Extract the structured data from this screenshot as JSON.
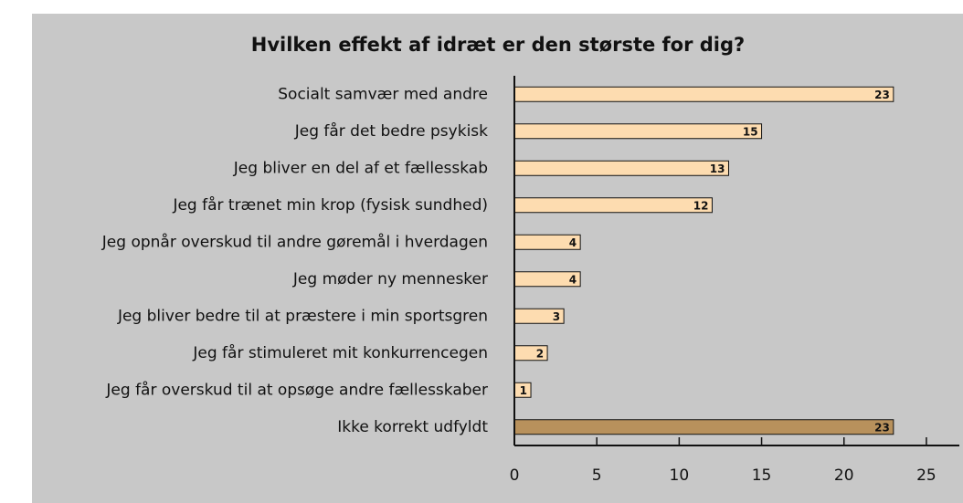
{
  "chart_data": {
    "type": "bar",
    "orientation": "horizontal",
    "title": "Hvilken effekt af idræt er den største for dig?",
    "categories": [
      "Socialt samvær med andre",
      "Jeg får det bedre psykisk",
      "Jeg bliver en del af et fællesskab",
      "Jeg får trænet min krop (fysisk sundhed)",
      "Jeg opnår overskud til andre gøremål i hverdagen",
      "Jeg møder ny mennesker",
      "Jeg bliver bedre til at præstere i min sportsgren",
      "Jeg får stimuleret mit konkurrencegen",
      "Jeg får overskud til at opsøge andre fællesskaber",
      "Ikke korrekt udfyldt"
    ],
    "values": [
      23,
      15,
      13,
      12,
      4,
      4,
      3,
      2,
      1,
      23
    ],
    "colors": [
      "#fddcb0",
      "#fddcb0",
      "#fddcb0",
      "#fddcb0",
      "#fddcb0",
      "#fddcb0",
      "#fddcb0",
      "#fddcb0",
      "#fddcb0",
      "#b8915c"
    ],
    "xlim": [
      0,
      27
    ],
    "xticks": [
      0,
      5,
      10,
      15,
      20,
      25
    ]
  }
}
